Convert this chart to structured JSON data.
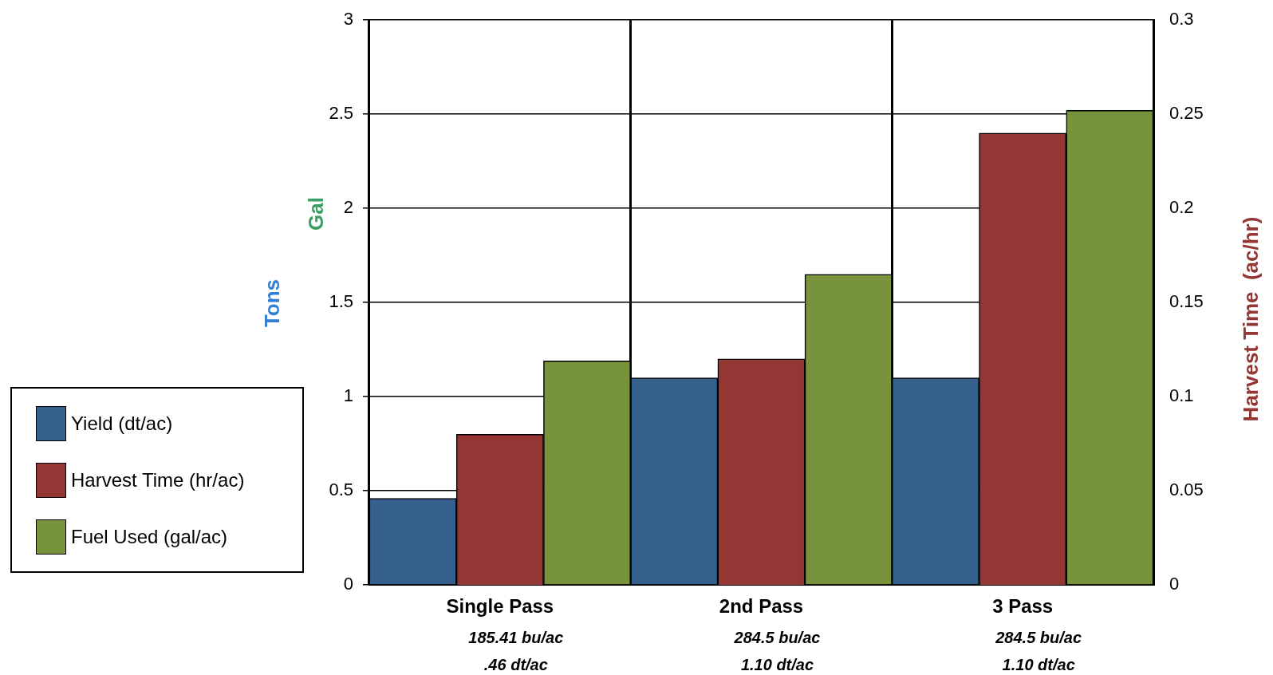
{
  "chart_data": {
    "type": "bar",
    "categories": [
      "Single Pass",
      "2nd Pass",
      "3 Pass"
    ],
    "series": [
      {
        "name": "Yield (dt/ac)",
        "color": "#355f8d",
        "values": [
          0.46,
          1.1,
          1.1
        ]
      },
      {
        "name": "Harvest Time (hr/ac)",
        "color": "#943634",
        "values": [
          0.08,
          0.12,
          0.24
        ],
        "axis": "y2"
      },
      {
        "name": "Fuel Used (gal/ac)",
        "color": "#77933c",
        "values": [
          1.19,
          1.65,
          2.52
        ]
      }
    ],
    "ylabel": "Tons",
    "y2label": "Harvest Time  (ac/hr)",
    "ylim": [
      0,
      3
    ],
    "yticks": [
      0,
      0.5,
      1,
      1.5,
      2,
      2.5,
      3
    ],
    "y2lim": [
      0,
      0.3
    ],
    "y2ticks": [
      0,
      0.05,
      0.1,
      0.15,
      0.2,
      0.25,
      0.3
    ],
    "annotations": [
      "Gal",
      "185.41 bu/ac",
      ".46 dt/ac",
      "284.5 bu/ac",
      "1.10 dt/ac",
      "284.5 bu/ac",
      "1.10 dt/ac"
    ],
    "grid": true,
    "legend": "left"
  }
}
